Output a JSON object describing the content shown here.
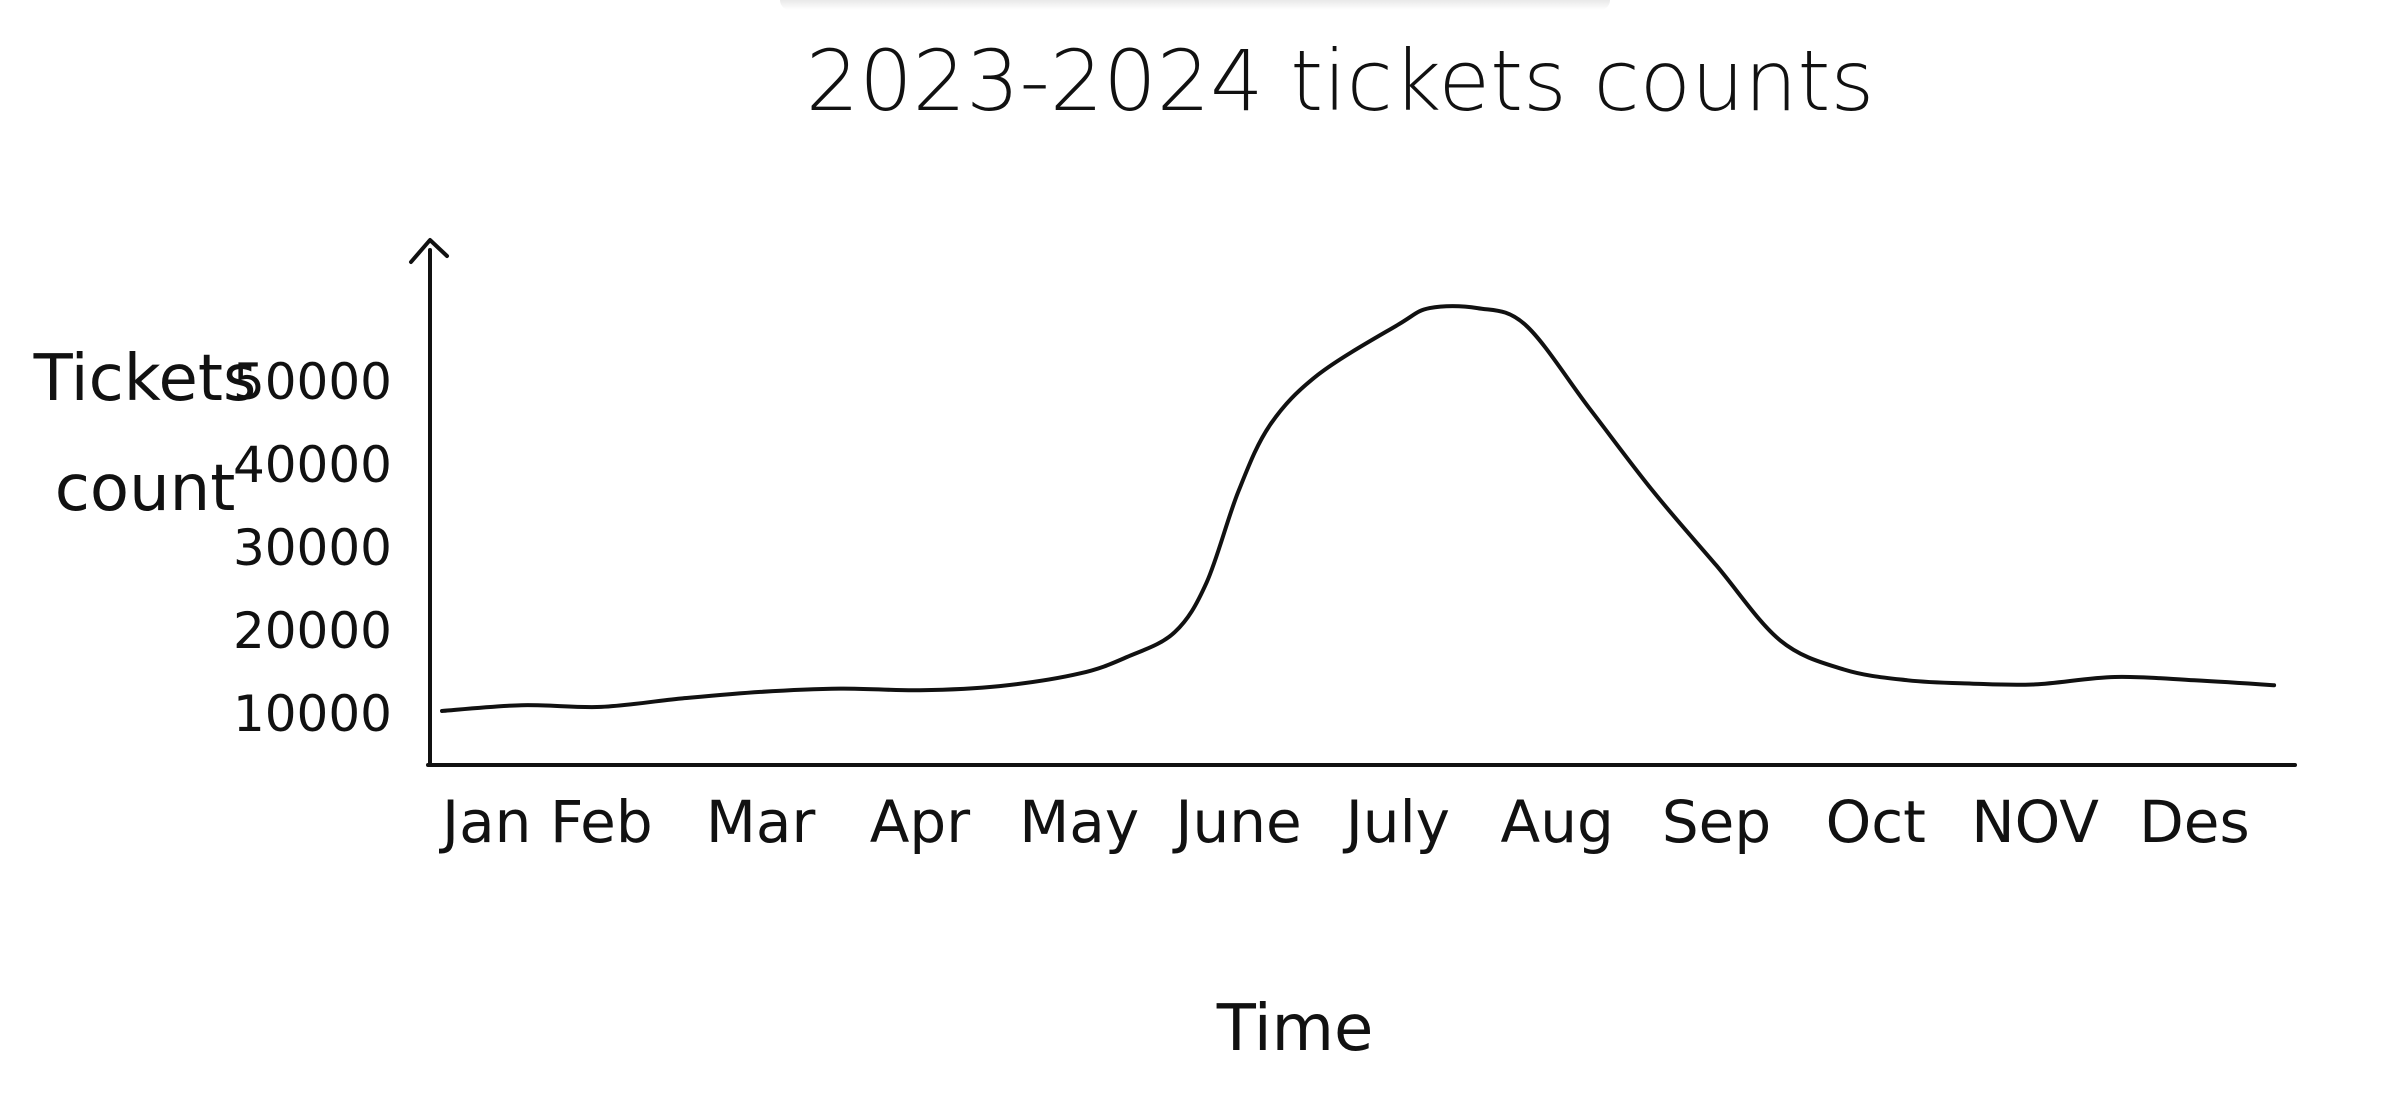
{
  "chart_data": {
    "type": "line",
    "title": "2023-2024 tickets counts",
    "xlabel": "Time",
    "ylabel": "Tickets count",
    "categories": [
      "Jan",
      "Feb",
      "Mar",
      "Apr",
      "May",
      "June",
      "July",
      "Aug",
      "Sep",
      "Oct",
      "NOV",
      "Des"
    ],
    "y_ticks": [
      10000,
      20000,
      30000,
      40000,
      50000
    ],
    "y_tick_labels": [
      "10000",
      "20000",
      "30000",
      "40000",
      "50000"
    ],
    "ylim": [
      4000,
      66000
    ],
    "grid": false,
    "legend": "none",
    "x": [
      0,
      0.5,
      1,
      1.5,
      2,
      2.5,
      3,
      3.5,
      4,
      4.3,
      4.6,
      4.8,
      5.0,
      5.2,
      5.5,
      6.0,
      6.2,
      6.5,
      6.8,
      7.2,
      7.6,
      8.0,
      8.4,
      8.8,
      9.2,
      9.6,
      10.0,
      10.5,
      11.0,
      11.5
    ],
    "series": [
      {
        "values": [
          10500,
          11200,
          11000,
          12000,
          12800,
          13200,
          13000,
          13500,
          15000,
          17000,
          20000,
          26000,
          37000,
          45000,
          51000,
          57000,
          59000,
          59000,
          57000,
          47000,
          37000,
          28000,
          19000,
          15500,
          14200,
          13800,
          13700,
          14600,
          14200,
          13600
        ]
      }
    ]
  },
  "colors": {
    "ink": "#111111",
    "background": "#ffffff"
  }
}
